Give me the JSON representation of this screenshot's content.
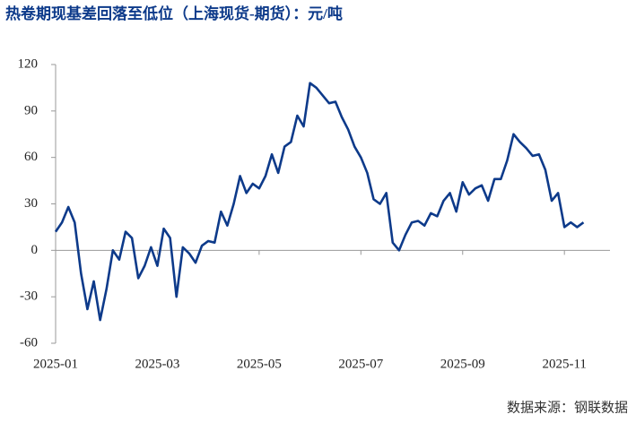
{
  "chart_data": {
    "type": "line",
    "title": "热卷期现基差回落至低位（上海现货-期货）：元/吨",
    "source": "数据来源：钢联数据",
    "categories": [
      "2025-01",
      null,
      null,
      null,
      null,
      null,
      null,
      null,
      null,
      null,
      null,
      null,
      null,
      null,
      null,
      null,
      "2025-03",
      null,
      null,
      null,
      null,
      null,
      null,
      null,
      null,
      null,
      null,
      null,
      null,
      null,
      null,
      null,
      "2025-05",
      null,
      null,
      null,
      null,
      null,
      null,
      null,
      null,
      null,
      null,
      null,
      null,
      null,
      null,
      null,
      "2025-07",
      null,
      null,
      null,
      null,
      null,
      null,
      null,
      null,
      null,
      null,
      null,
      null,
      null,
      null,
      null,
      "2025-09",
      null,
      null,
      null,
      null,
      null,
      null,
      null,
      null,
      null,
      null,
      null,
      null,
      null,
      null,
      null,
      "2025-11",
      null,
      null,
      null
    ],
    "values": [
      12,
      18,
      28,
      18,
      -15,
      -38,
      -20,
      -45,
      -25,
      0,
      -6,
      12,
      8,
      -18,
      -10,
      2,
      -10,
      14,
      8,
      -30,
      2,
      -2,
      -8,
      3,
      6,
      5,
      25,
      16,
      30,
      48,
      37,
      43,
      40,
      48,
      62,
      50,
      67,
      70,
      87,
      80,
      108,
      105,
      100,
      95,
      96,
      86,
      78,
      67,
      60,
      50,
      33,
      30,
      37,
      5,
      0,
      10,
      18,
      19,
      16,
      24,
      22,
      32,
      37,
      25,
      44,
      36,
      40,
      42,
      32,
      46,
      46,
      58,
      75,
      70,
      66,
      61,
      62,
      52,
      32,
      37,
      15,
      18,
      15,
      18
    ],
    "color": "#0d3a8a",
    "ylim": [
      -60,
      120
    ],
    "yticks": [
      -60,
      -30,
      0,
      30,
      60,
      90,
      120
    ]
  }
}
